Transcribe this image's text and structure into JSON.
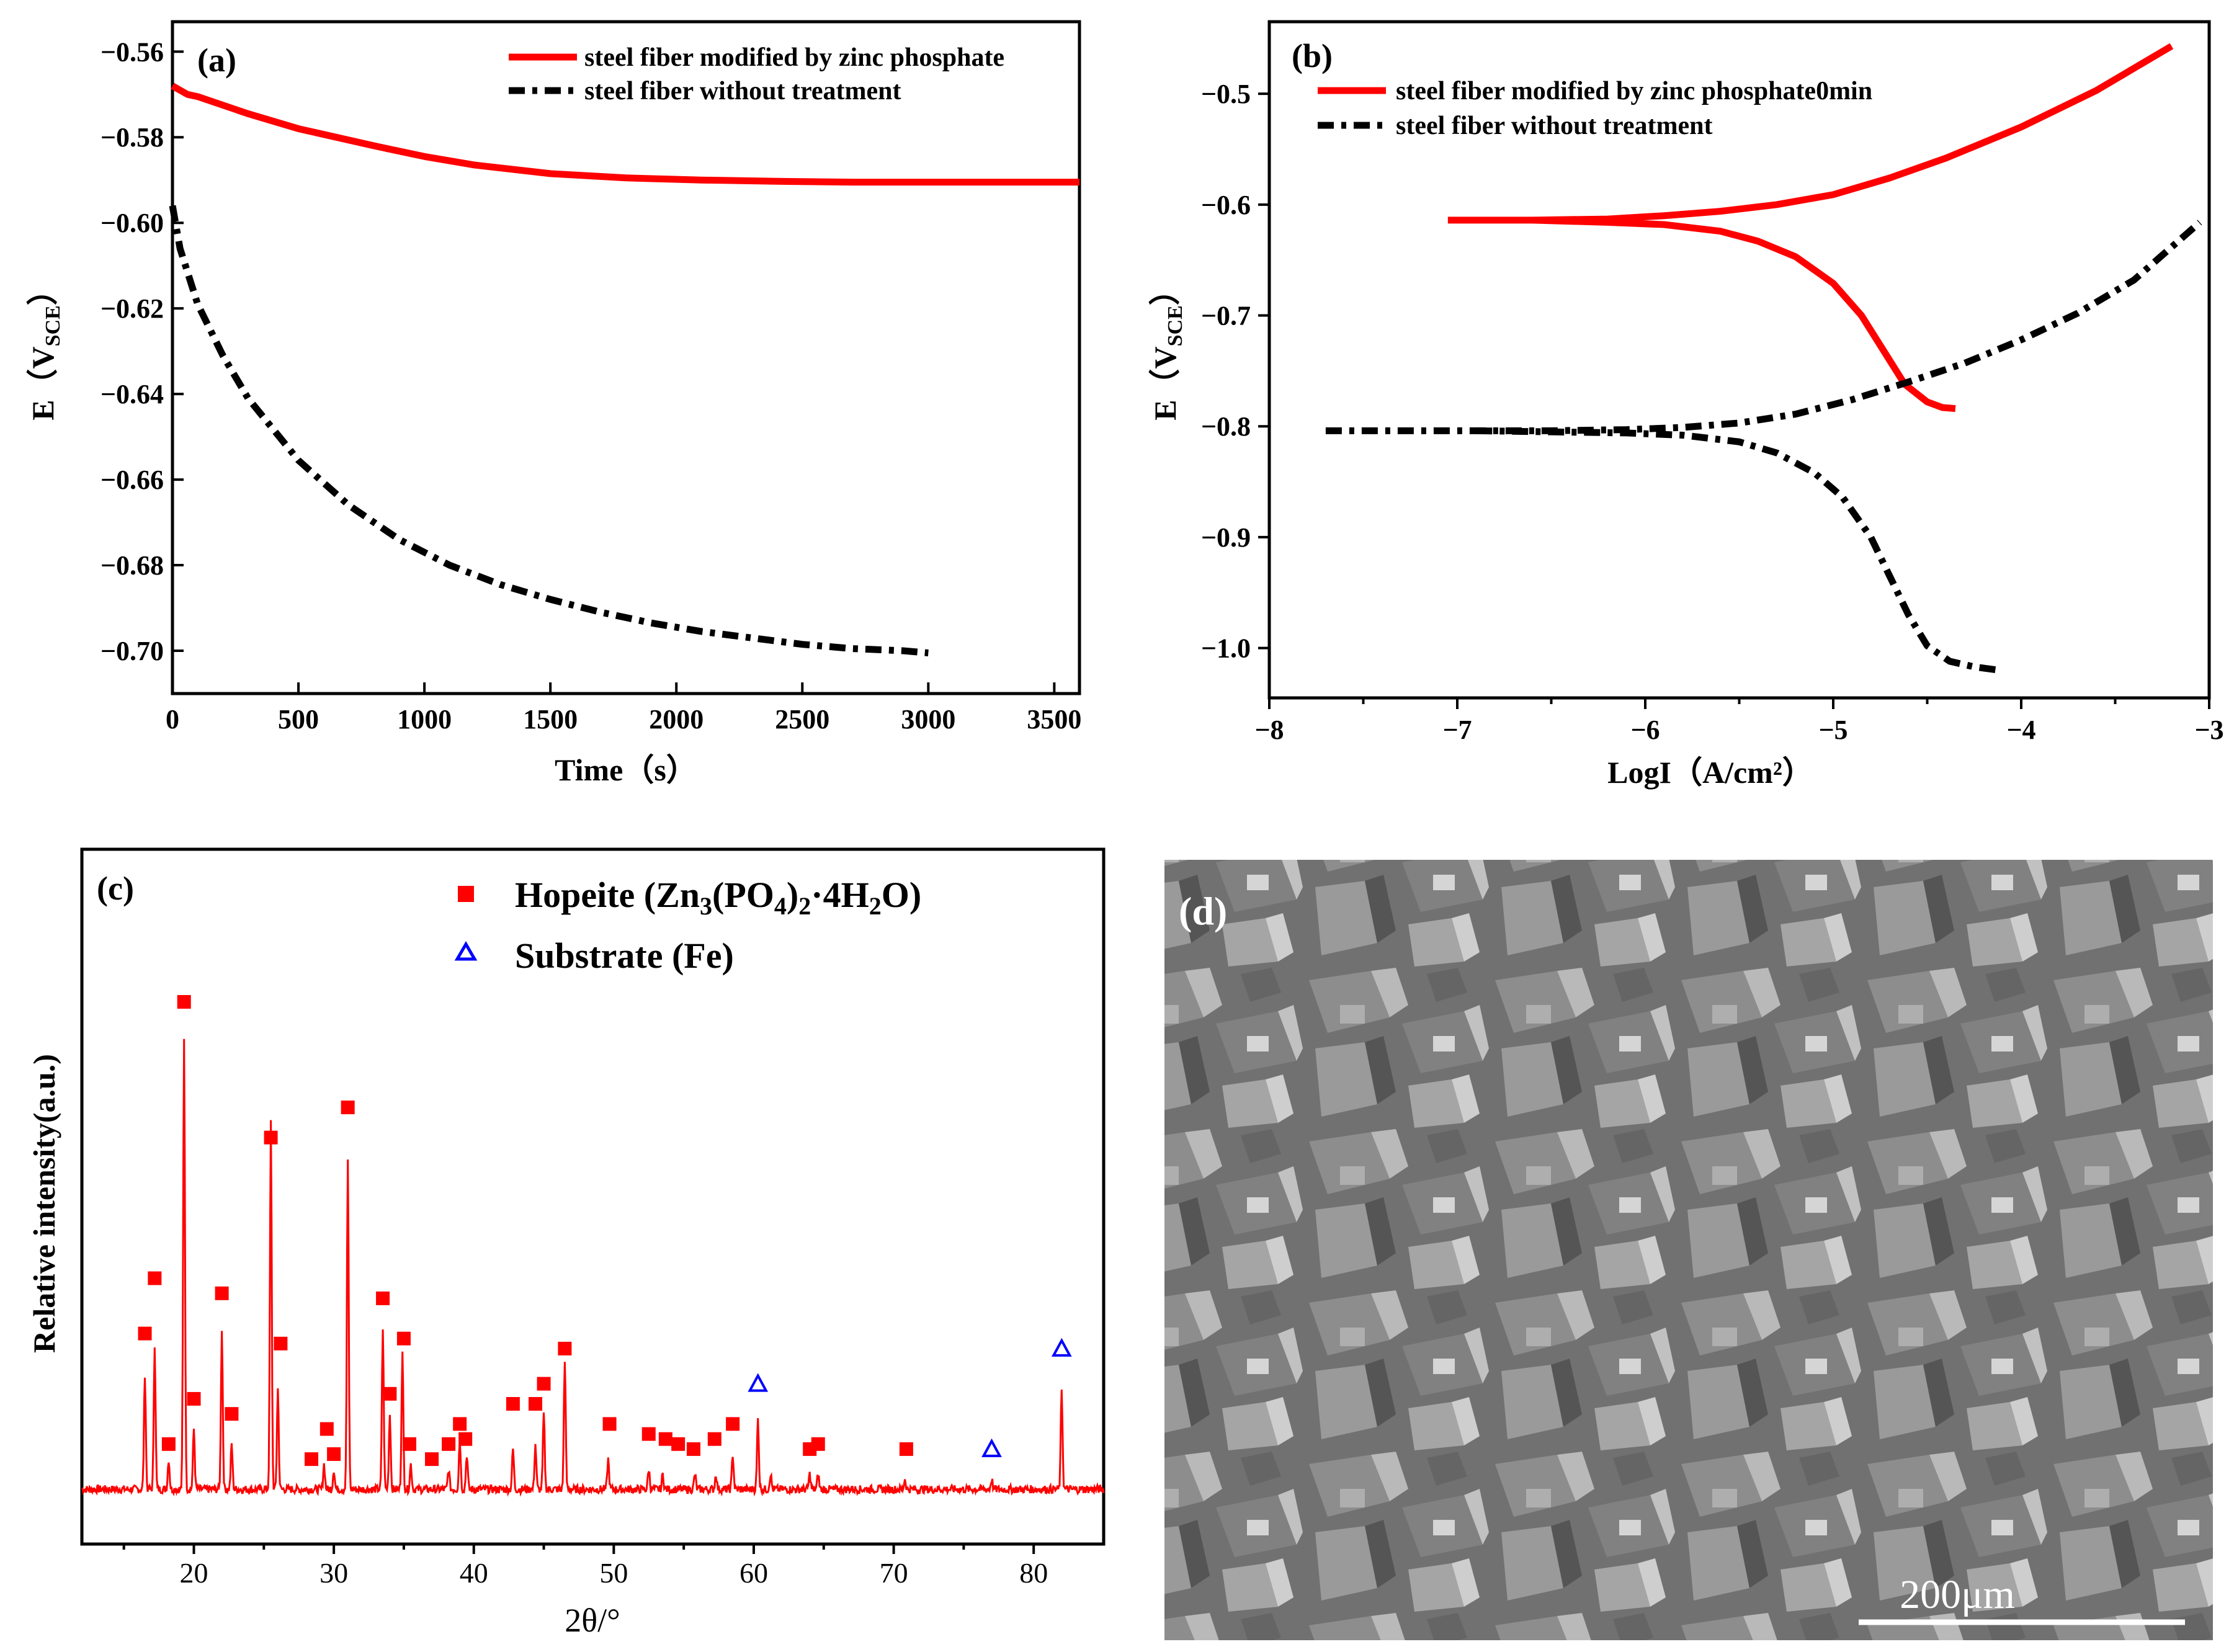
{
  "chart_data": [
    {
      "panel": "(a)",
      "type": "line",
      "xlabel": "Time（s）",
      "ylabel": "E（V_SCE）",
      "xlim": [
        0,
        3600
      ],
      "ylim": [
        -0.71,
        -0.553
      ],
      "xticks": [
        0,
        500,
        1000,
        1500,
        2000,
        2500,
        3000,
        3500
      ],
      "yticks": [
        -0.56,
        -0.58,
        -0.6,
        -0.62,
        -0.64,
        -0.66,
        -0.68,
        -0.7
      ],
      "legend_position": "top-right",
      "series": [
        {
          "name": "steel fiber modified by zinc phosphate",
          "style": "solid",
          "color": "#ff0000",
          "x": [
            0,
            30,
            60,
            100,
            300,
            500,
            800,
            1000,
            1200,
            1500,
            1800,
            2100,
            2400,
            2700,
            3000,
            3300,
            3600
          ],
          "y": [
            -0.568,
            -0.569,
            -0.57,
            -0.5705,
            -0.5745,
            -0.578,
            -0.582,
            -0.5845,
            -0.5865,
            -0.5885,
            -0.5895,
            -0.59,
            -0.5903,
            -0.5905,
            -0.5905,
            -0.5905,
            -0.5905
          ]
        },
        {
          "name": "steel fiber without treatment",
          "style": "dash-dot",
          "color": "#000000",
          "x": [
            0,
            30,
            100,
            200,
            300,
            500,
            700,
            900,
            1100,
            1300,
            1500,
            1700,
            1900,
            2100,
            2300,
            2500,
            2700,
            2900,
            3000
          ],
          "y": [
            -0.596,
            -0.606,
            -0.619,
            -0.631,
            -0.641,
            -0.6555,
            -0.666,
            -0.674,
            -0.68,
            -0.6845,
            -0.688,
            -0.691,
            -0.6935,
            -0.6955,
            -0.697,
            -0.6985,
            -0.6995,
            -0.7,
            -0.7005
          ]
        }
      ]
    },
    {
      "panel": "(b)",
      "type": "line",
      "xlabel": "LogI（A/cm²）",
      "ylabel": "E（V_SCE）",
      "xlim": [
        -8,
        -3
      ],
      "ylim": [
        -1.045,
        -0.435
      ],
      "xticks": [
        -8,
        -7,
        -6,
        -5,
        -4,
        -3
      ],
      "yticks": [
        -0.5,
        -0.6,
        -0.7,
        -0.8,
        -0.9,
        -1.0
      ],
      "legend_position": "top-left",
      "series": [
        {
          "name": "steel fiber modified by zinc phosphate0min",
          "style": "solid",
          "color": "#ff0000",
          "branches": [
            {
              "x": [
                -7.05,
                -6.6,
                -6.2,
                -5.9,
                -5.6,
                -5.3,
                -5.0,
                -4.7,
                -4.4,
                -4.0,
                -3.6,
                -3.2
              ],
              "y": [
                -0.614,
                -0.614,
                -0.613,
                -0.61,
                -0.606,
                -0.6,
                -0.591,
                -0.576,
                -0.558,
                -0.53,
                -0.497,
                -0.457
              ]
            },
            {
              "x": [
                -6.6,
                -6.2,
                -5.9,
                -5.6,
                -5.4,
                -5.2,
                -5.0,
                -4.85,
                -4.72,
                -4.62,
                -4.5,
                -4.42,
                -4.35
              ],
              "y": [
                -0.614,
                -0.616,
                -0.618,
                -0.624,
                -0.633,
                -0.647,
                -0.671,
                -0.7,
                -0.735,
                -0.762,
                -0.778,
                -0.783,
                -0.784
              ]
            }
          ]
        },
        {
          "name": "steel fiber without treatment",
          "style": "dash-dot",
          "color": "#000000",
          "branches": [
            {
              "x": [
                -7.7,
                -7.3,
                -6.9,
                -6.5,
                -6.1,
                -5.8,
                -5.5,
                -5.2,
                -4.9,
                -4.6,
                -4.3,
                -4.0,
                -3.7,
                -3.4,
                -3.05
              ],
              "y": [
                -0.804,
                -0.804,
                -0.804,
                -0.804,
                -0.803,
                -0.801,
                -0.797,
                -0.789,
                -0.776,
                -0.76,
                -0.743,
                -0.722,
                -0.698,
                -0.668,
                -0.616
              ]
            },
            {
              "x": [
                -6.9,
                -6.5,
                -6.1,
                -5.8,
                -5.5,
                -5.3,
                -5.1,
                -4.95,
                -4.8,
                -4.7,
                -4.6,
                -4.5,
                -4.38,
                -4.25,
                -4.12
              ],
              "y": [
                -0.804,
                -0.805,
                -0.806,
                -0.808,
                -0.814,
                -0.824,
                -0.842,
                -0.864,
                -0.9,
                -0.935,
                -0.97,
                -0.998,
                -1.012,
                -1.017,
                -1.02
              ]
            }
          ]
        }
      ]
    },
    {
      "panel": "(c)",
      "type": "line",
      "xlabel": "2θ/°",
      "ylabel": "Relative intensity(a.u.)",
      "xlim": [
        12,
        85
      ],
      "ylim": [
        0,
        100
      ],
      "xticks": [
        20,
        30,
        40,
        50,
        60,
        70,
        80
      ],
      "legend_position": "top-center",
      "legend": [
        {
          "label": "Hopeite (Zn₃(PO₄)₂·4H₂O)",
          "marker": "square",
          "color": "#ff0000"
        },
        {
          "label": "Substrate (Fe)",
          "marker": "triangle-open",
          "color": "#0000ff"
        }
      ],
      "baseline": 3,
      "peaks": [
        {
          "x": 16.5,
          "h": 23
        },
        {
          "x": 17.2,
          "h": 29
        },
        {
          "x": 18.2,
          "h": 6
        },
        {
          "x": 19.3,
          "h": 90
        },
        {
          "x": 20.0,
          "h": 12
        },
        {
          "x": 22.0,
          "h": 32
        },
        {
          "x": 22.7,
          "h": 9
        },
        {
          "x": 25.5,
          "h": 73
        },
        {
          "x": 26.0,
          "h": 20
        },
        {
          "x": 29.3,
          "h": 5
        },
        {
          "x": 30.0,
          "h": 4
        },
        {
          "x": 31.0,
          "h": 65
        },
        {
          "x": 33.5,
          "h": 32
        },
        {
          "x": 34.0,
          "h": 15
        },
        {
          "x": 34.9,
          "h": 27
        },
        {
          "x": 35.5,
          "h": 5
        },
        {
          "x": 38.2,
          "h": 4
        },
        {
          "x": 39.0,
          "h": 10
        },
        {
          "x": 39.5,
          "h": 7
        },
        {
          "x": 42.8,
          "h": 8
        },
        {
          "x": 44.4,
          "h": 9
        },
        {
          "x": 45.0,
          "h": 15
        },
        {
          "x": 46.5,
          "h": 26
        },
        {
          "x": 49.6,
          "h": 6
        },
        {
          "x": 52.5,
          "h": 4
        },
        {
          "x": 53.5,
          "h": 3
        },
        {
          "x": 55.8,
          "h": 3
        },
        {
          "x": 57.3,
          "h": 3
        },
        {
          "x": 58.5,
          "h": 7
        },
        {
          "x": 60.3,
          "h": 14
        },
        {
          "x": 61.2,
          "h": 3
        },
        {
          "x": 64.0,
          "h": 3
        },
        {
          "x": 64.6,
          "h": 3
        },
        {
          "x": 70.8,
          "h": 2
        },
        {
          "x": 77.0,
          "h": 2
        },
        {
          "x": 82.0,
          "h": 20
        }
      ],
      "hopeite_markers": [
        {
          "x": 16.5,
          "y": 34
        },
        {
          "x": 17.2,
          "y": 45
        },
        {
          "x": 18.2,
          "y": 12
        },
        {
          "x": 19.3,
          "y": 100
        },
        {
          "x": 20.0,
          "y": 21
        },
        {
          "x": 22.0,
          "y": 42
        },
        {
          "x": 22.7,
          "y": 18
        },
        {
          "x": 25.5,
          "y": 73
        },
        {
          "x": 26.2,
          "y": 32
        },
        {
          "x": 28.4,
          "y": 9
        },
        {
          "x": 29.5,
          "y": 15
        },
        {
          "x": 30.0,
          "y": 10
        },
        {
          "x": 31.0,
          "y": 79
        },
        {
          "x": 33.5,
          "y": 41
        },
        {
          "x": 34.0,
          "y": 22
        },
        {
          "x": 35.0,
          "y": 33
        },
        {
          "x": 35.4,
          "y": 12
        },
        {
          "x": 37.0,
          "y": 9
        },
        {
          "x": 38.2,
          "y": 12
        },
        {
          "x": 39.0,
          "y": 16
        },
        {
          "x": 39.4,
          "y": 13
        },
        {
          "x": 42.8,
          "y": 20
        },
        {
          "x": 44.4,
          "y": 20
        },
        {
          "x": 45.0,
          "y": 24
        },
        {
          "x": 46.5,
          "y": 31
        },
        {
          "x": 49.7,
          "y": 16
        },
        {
          "x": 52.5,
          "y": 14
        },
        {
          "x": 53.7,
          "y": 13
        },
        {
          "x": 54.6,
          "y": 12
        },
        {
          "x": 55.7,
          "y": 11
        },
        {
          "x": 57.2,
          "y": 13
        },
        {
          "x": 58.5,
          "y": 16
        },
        {
          "x": 64.0,
          "y": 11
        },
        {
          "x": 64.6,
          "y": 12
        },
        {
          "x": 70.9,
          "y": 11
        }
      ],
      "fe_markers": [
        {
          "x": 60.3,
          "y": 24
        },
        {
          "x": 77.0,
          "y": 11
        },
        {
          "x": 82.0,
          "y": 31
        }
      ]
    }
  ],
  "sem": {
    "panel": "(d)",
    "scale_bar": "200μm"
  }
}
